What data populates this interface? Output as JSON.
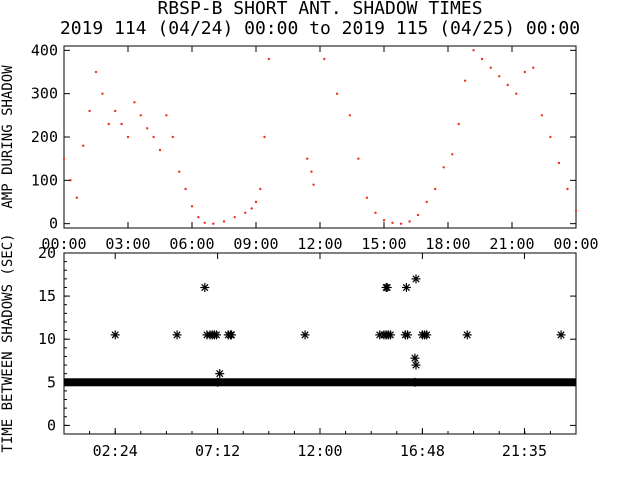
{
  "title_line1": "RBSP-B SHORT ANT. SHADOW TIMES",
  "title_line2": "2019 114 (04/24) 00:00 to 2019 115 (04/25) 00:00",
  "colors": {
    "points_top": "#e8321e",
    "points_bottom": "#000000",
    "axes": "#000000"
  },
  "chart_data": [
    {
      "type": "scatter",
      "ylabel": "AMP DURING SHADOW",
      "xlim_hours": [
        0,
        24
      ],
      "ylim": [
        -10,
        410
      ],
      "x_ticks": [
        "00:00",
        "03:00",
        "06:00",
        "09:00",
        "12:00",
        "15:00",
        "18:00",
        "21:00",
        "00:00"
      ],
      "y_ticks": [
        "0",
        "100",
        "200",
        "300",
        "400"
      ],
      "series": [
        {
          "values_desc": "dense red scatter; approx envelope points [hour, amp]",
          "points": [
            [
              0.0,
              150
            ],
            [
              0.3,
              100
            ],
            [
              0.6,
              60
            ],
            [
              0.9,
              180
            ],
            [
              1.2,
              260
            ],
            [
              1.5,
              350
            ],
            [
              1.8,
              300
            ],
            [
              2.1,
              230
            ],
            [
              2.4,
              260
            ],
            [
              2.7,
              230
            ],
            [
              3.0,
              200
            ],
            [
              3.3,
              280
            ],
            [
              3.6,
              250
            ],
            [
              3.9,
              220
            ],
            [
              4.2,
              200
            ],
            [
              4.5,
              170
            ],
            [
              4.8,
              250
            ],
            [
              5.1,
              200
            ],
            [
              5.4,
              120
            ],
            [
              5.7,
              80
            ],
            [
              6.0,
              40
            ],
            [
              6.3,
              15
            ],
            [
              6.6,
              2
            ],
            [
              7.0,
              0
            ],
            [
              7.5,
              5
            ],
            [
              8.0,
              15
            ],
            [
              8.5,
              25
            ],
            [
              8.8,
              35
            ],
            [
              9.0,
              50
            ],
            [
              9.2,
              80
            ],
            [
              9.4,
              200
            ],
            [
              9.6,
              380
            ],
            [
              11.4,
              150
            ],
            [
              11.6,
              120
            ],
            [
              11.7,
              90
            ],
            [
              12.2,
              380
            ],
            [
              12.8,
              300
            ],
            [
              13.4,
              250
            ],
            [
              13.8,
              150
            ],
            [
              14.2,
              60
            ],
            [
              14.6,
              25
            ],
            [
              15.0,
              8
            ],
            [
              15.4,
              2
            ],
            [
              15.8,
              0
            ],
            [
              16.2,
              5
            ],
            [
              16.6,
              20
            ],
            [
              17.0,
              50
            ],
            [
              17.4,
              80
            ],
            [
              17.8,
              130
            ],
            [
              18.2,
              160
            ],
            [
              18.5,
              230
            ],
            [
              18.8,
              330
            ],
            [
              19.2,
              400
            ],
            [
              19.6,
              380
            ],
            [
              20.0,
              360
            ],
            [
              20.4,
              340
            ],
            [
              20.8,
              320
            ],
            [
              21.2,
              300
            ],
            [
              21.6,
              350
            ],
            [
              22.0,
              360
            ],
            [
              22.4,
              250
            ],
            [
              22.8,
              200
            ],
            [
              23.2,
              140
            ],
            [
              23.6,
              80
            ],
            [
              24.0,
              30
            ]
          ]
        }
      ]
    },
    {
      "type": "scatter",
      "ylabel": "TIME BETWEEN SHADOWS (SEC)",
      "xlim_hours": [
        0,
        24
      ],
      "ylim": [
        -1,
        20
      ],
      "x_ticks": [
        "02:24",
        "07:12",
        "12:00",
        "16:48",
        "21:35"
      ],
      "x_tick_hours": [
        2.4,
        7.2,
        12.0,
        16.8,
        21.583
      ],
      "y_ticks": [
        "0",
        "5",
        "10",
        "15",
        "20"
      ],
      "baseline": {
        "y": 5.0,
        "from_hour": 0,
        "to_hour": 24
      },
      "series": [
        {
          "marker": "asterisk",
          "points": [
            [
              2.4,
              10.5
            ],
            [
              5.3,
              10.5
            ],
            [
              6.6,
              16.0
            ],
            [
              6.7,
              10.5
            ],
            [
              6.85,
              10.5
            ],
            [
              6.95,
              10.5
            ],
            [
              7.05,
              10.5
            ],
            [
              7.15,
              10.5
            ],
            [
              7.3,
              6.0
            ],
            [
              7.2,
              5.0
            ],
            [
              7.7,
              10.5
            ],
            [
              7.8,
              10.5
            ],
            [
              7.85,
              10.5
            ],
            [
              11.3,
              10.5
            ],
            [
              14.8,
              10.5
            ],
            [
              15.1,
              16.0
            ],
            [
              15.15,
              16.0
            ],
            [
              15.0,
              10.5
            ],
            [
              15.1,
              10.5
            ],
            [
              15.2,
              10.5
            ],
            [
              15.3,
              10.5
            ],
            [
              16.05,
              16.0
            ],
            [
              16.0,
              10.5
            ],
            [
              16.1,
              10.5
            ],
            [
              16.5,
              17.0
            ],
            [
              16.45,
              7.8
            ],
            [
              16.5,
              7.0
            ],
            [
              16.45,
              5.0
            ],
            [
              16.8,
              10.5
            ],
            [
              16.9,
              10.5
            ],
            [
              17.0,
              10.5
            ],
            [
              18.9,
              10.5
            ],
            [
              23.3,
              10.5
            ]
          ]
        }
      ]
    }
  ]
}
